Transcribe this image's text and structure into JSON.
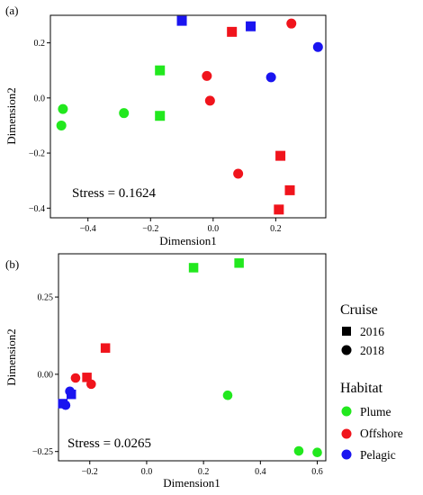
{
  "chart_data": [
    {
      "type": "scatter",
      "panel_label": "(a)",
      "xlabel": "Dimension1",
      "ylabel": "Dimension2",
      "xlim": [
        -0.52,
        0.36
      ],
      "ylim": [
        -0.435,
        0.3
      ],
      "xticks": [
        -0.4,
        -0.2,
        0.0,
        0.2
      ],
      "xtick_labels": [
        "−0.4",
        "−0.2",
        "0.0",
        "0.2"
      ],
      "yticks": [
        -0.4,
        -0.2,
        0.0,
        0.2
      ],
      "ytick_labels": [
        "−0.4",
        "−0.2",
        "0.0",
        "0.2"
      ],
      "grid": false,
      "annotation": "Stress = 0.1624",
      "series": [
        {
          "cruise": "2016",
          "habitat": "Plume",
          "x": [
            -0.17,
            -0.17
          ],
          "y": [
            0.1,
            -0.065
          ]
        },
        {
          "cruise": "2018",
          "habitat": "Plume",
          "x": [
            -0.48,
            -0.485,
            -0.285
          ],
          "y": [
            -0.04,
            -0.1,
            -0.055
          ]
        },
        {
          "cruise": "2016",
          "habitat": "Offshore",
          "x": [
            0.06,
            0.215,
            0.245,
            0.21
          ],
          "y": [
            0.24,
            -0.21,
            -0.335,
            -0.405
          ]
        },
        {
          "cruise": "2018",
          "habitat": "Offshore",
          "x": [
            0.25,
            -0.02,
            -0.01,
            0.08
          ],
          "y": [
            0.27,
            0.08,
            -0.01,
            -0.275
          ]
        },
        {
          "cruise": "2016",
          "habitat": "Pelagic",
          "x": [
            -0.1,
            0.12
          ],
          "y": [
            0.28,
            0.26
          ]
        },
        {
          "cruise": "2018",
          "habitat": "Pelagic",
          "x": [
            0.335,
            0.185
          ],
          "y": [
            0.185,
            0.075
          ]
        }
      ]
    },
    {
      "type": "scatter",
      "panel_label": "(b)",
      "xlabel": "Dimension1",
      "ylabel": "Dimension2",
      "xlim": [
        -0.31,
        0.63
      ],
      "ylim": [
        -0.28,
        0.39
      ],
      "xticks": [
        -0.2,
        0.0,
        0.2,
        0.4,
        0.6
      ],
      "xtick_labels": [
        "−0.2",
        "0.0",
        "0.2",
        "0.4",
        "0.6"
      ],
      "yticks": [
        -0.25,
        0.0,
        0.25
      ],
      "ytick_labels": [
        "−0.25",
        "0.00",
        "0.25"
      ],
      "grid": false,
      "annotation": "Stress = 0.0265",
      "series": [
        {
          "cruise": "2016",
          "habitat": "Plume",
          "x": [
            0.165,
            0.325
          ],
          "y": [
            0.345,
            0.36
          ]
        },
        {
          "cruise": "2018",
          "habitat": "Plume",
          "x": [
            0.285,
            0.535,
            0.6
          ],
          "y": [
            -0.068,
            -0.248,
            -0.253
          ]
        },
        {
          "cruise": "2016",
          "habitat": "Offshore",
          "x": [
            -0.145,
            -0.21
          ],
          "y": [
            0.085,
            -0.01
          ]
        },
        {
          "cruise": "2018",
          "habitat": "Offshore",
          "x": [
            -0.25,
            -0.195
          ],
          "y": [
            -0.012,
            -0.032
          ]
        },
        {
          "cruise": "2016",
          "habitat": "Pelagic",
          "x": [
            -0.265,
            -0.295
          ],
          "y": [
            -0.065,
            -0.095
          ]
        },
        {
          "cruise": "2018",
          "habitat": "Pelagic",
          "x": [
            -0.27,
            -0.285
          ],
          "y": [
            -0.055,
            -0.1
          ]
        }
      ]
    }
  ],
  "legend": {
    "cruise_title": "Cruise",
    "cruise_items": [
      {
        "label": "2016",
        "shape": "square"
      },
      {
        "label": "2018",
        "shape": "circle"
      }
    ],
    "habitat_title": "Habitat",
    "habitat_items": [
      {
        "label": "Plume",
        "color": "#22e81e"
      },
      {
        "label": "Offshore",
        "color": "#f0141c"
      },
      {
        "label": "Pelagic",
        "color": "#1a14f0"
      }
    ]
  },
  "colors": {
    "Plume": "#22e81e",
    "Offshore": "#f0141c",
    "Pelagic": "#1a14f0"
  }
}
